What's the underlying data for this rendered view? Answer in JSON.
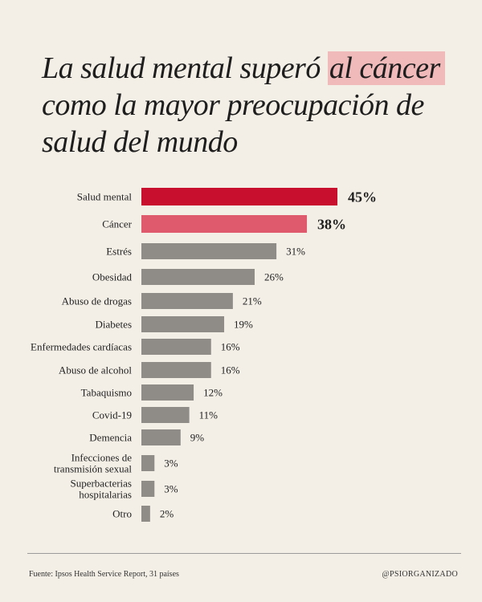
{
  "title": {
    "line1": "La salud mental superó",
    "highlight": "al cáncer",
    "line2": "como la mayor preocupación de",
    "line3": "salud del mundo"
  },
  "colors": {
    "background": "#f3efe6",
    "primary": "#c8102e",
    "secondary": "#e05a6e",
    "neutral": "#8f8c87",
    "highlight": "#ec8c96"
  },
  "chart_data": {
    "type": "bar",
    "orientation": "horizontal",
    "categories": [
      "Salud mental",
      "Cáncer",
      "Estrés",
      "Obesidad",
      "Abuso de drogas",
      "Diabetes",
      "Enfermedades cardíacas",
      "Abuso de alcohol",
      "Tabaquismo",
      "Covid-19",
      "Demencia",
      "Infecciones de transmisión sexual",
      "Superbacterias hospitalarias",
      "Otro"
    ],
    "values": [
      45,
      38,
      31,
      26,
      21,
      19,
      16,
      16,
      12,
      11,
      9,
      3,
      3,
      2
    ],
    "value_labels": [
      "45%",
      "38%",
      "31%",
      "26%",
      "21%",
      "19%",
      "16%",
      "16%",
      "12%",
      "11%",
      "9%",
      "3%",
      "3%",
      "2%"
    ],
    "label_lines": [
      [
        "Salud mental"
      ],
      [
        "Cáncer"
      ],
      [
        "Estrés"
      ],
      [
        "Obesidad"
      ],
      [
        "Abuso de drogas"
      ],
      [
        "Diabetes"
      ],
      [
        "Enfermedades cardíacas"
      ],
      [
        "Abuso de alcohol"
      ],
      [
        "Tabaquismo"
      ],
      [
        "Covid-19"
      ],
      [
        "Demencia"
      ],
      [
        "Infecciones de",
        "transmisión sexual"
      ],
      [
        "Superbacterias",
        "hospitalarias"
      ],
      [
        "Otro"
      ]
    ],
    "bar_colors": [
      "primary",
      "secondary",
      "neutral",
      "neutral",
      "neutral",
      "neutral",
      "neutral",
      "neutral",
      "neutral",
      "neutral",
      "neutral",
      "neutral",
      "neutral",
      "neutral"
    ],
    "emphasized": [
      true,
      true,
      false,
      false,
      false,
      false,
      false,
      false,
      false,
      false,
      false,
      false,
      false,
      false
    ],
    "xlim": [
      0,
      45
    ],
    "grid": false,
    "legend": "none"
  },
  "footer": {
    "source": "Fuente: Ipsos Health Service Report, 31 países",
    "handle": "@PSIORGANIZADO"
  }
}
